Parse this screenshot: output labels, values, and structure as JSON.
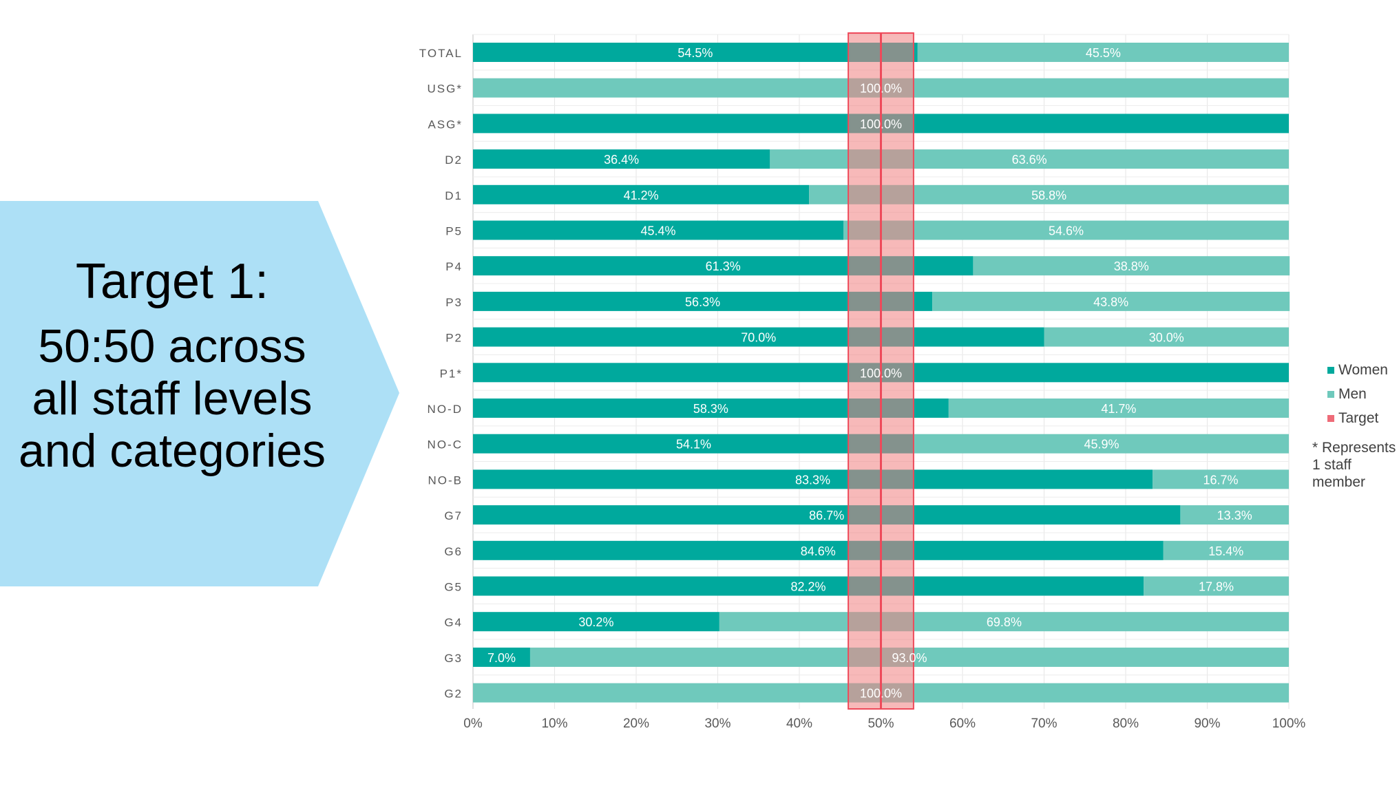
{
  "callout": {
    "title": "Target 1:",
    "body": "50:50 across all staff levels and categories",
    "color": "#ade0f6"
  },
  "legend": {
    "women": "Women",
    "men": "Men",
    "target": "Target"
  },
  "note": "* Represents 1 staff member",
  "colors": {
    "women": "#00a99d",
    "men": "#6fc9bc",
    "target_band": "#f08080",
    "target_line": "#ee4a5a",
    "axis_text": "#595959",
    "label_text": "#ffffff"
  },
  "chart_data": {
    "type": "bar",
    "orientation": "horizontal",
    "stacked": true,
    "categories": [
      "TOTAL",
      "USG*",
      "ASG*",
      "D2",
      "D1",
      "P5",
      "P4",
      "P3",
      "P2",
      "P1*",
      "NO-D",
      "NO-C",
      "NO-B",
      "G7",
      "G6",
      "G5",
      "G4",
      "G3",
      "G2"
    ],
    "series": [
      {
        "name": "Women",
        "values": [
          54.5,
          0,
          100,
          36.4,
          41.2,
          45.4,
          61.3,
          56.3,
          70.0,
          100,
          58.3,
          54.1,
          83.3,
          86.7,
          84.6,
          82.2,
          30.2,
          7.0,
          0
        ],
        "labels": [
          "54.5%",
          "",
          "100.0%",
          "36.4%",
          "41.2%",
          "45.4%",
          "61.3%",
          "56.3%",
          "70.0%",
          "100.0%",
          "58.3%",
          "54.1%",
          "83.3%",
          "86.7%",
          "84.6%",
          "82.2%",
          "30.2%",
          "7.0%",
          ""
        ]
      },
      {
        "name": "Men",
        "values": [
          45.5,
          100,
          0,
          63.6,
          58.8,
          54.6,
          38.8,
          43.8,
          30.0,
          0,
          41.7,
          45.9,
          16.7,
          13.3,
          15.4,
          17.8,
          69.8,
          93.0,
          100
        ],
        "labels": [
          "45.5%",
          "100.0%",
          "",
          "63.6%",
          "58.8%",
          "54.6%",
          "38.8%",
          "43.8%",
          "30.0%",
          "",
          "41.7%",
          "45.9%",
          "16.7%",
          "13.3%",
          "15.4%",
          "17.8%",
          "69.8%",
          "93.0%",
          "100.0%"
        ]
      }
    ],
    "target": {
      "name": "Target",
      "value": 50,
      "band": [
        46,
        54
      ]
    },
    "xlim": [
      0,
      100
    ],
    "xticks": [
      "0%",
      "10%",
      "20%",
      "30%",
      "40%",
      "50%",
      "60%",
      "70%",
      "80%",
      "90%",
      "100%"
    ],
    "grid": true,
    "legend_position": "right"
  }
}
